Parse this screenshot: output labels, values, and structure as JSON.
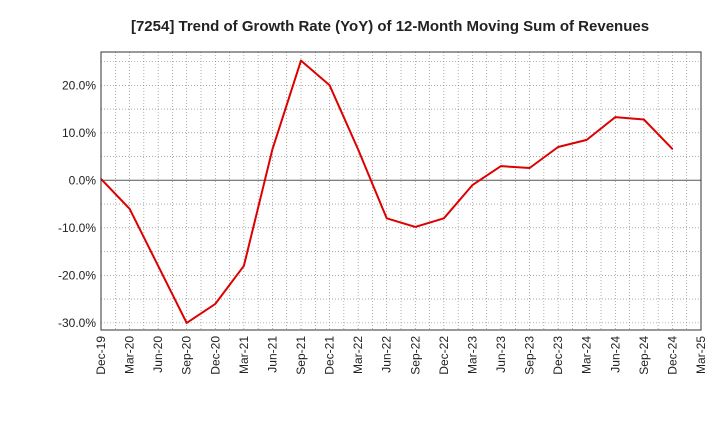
{
  "chart_data": {
    "type": "line",
    "title": "[7254]  Trend of Growth Rate (YoY) of 12-Month Moving Sum of Revenues",
    "xlabel": "",
    "ylabel": "",
    "x_ticks": [
      "Dec-19",
      "Mar-20",
      "Jun-20",
      "Sep-20",
      "Dec-20",
      "Mar-21",
      "Jun-21",
      "Sep-21",
      "Dec-21",
      "Mar-22",
      "Jun-22",
      "Sep-22",
      "Dec-22",
      "Mar-23",
      "Jun-23",
      "Sep-23",
      "Dec-23",
      "Mar-24",
      "Jun-24",
      "Sep-24",
      "Dec-24",
      "Mar-25"
    ],
    "y_ticks": [
      "20.0%",
      "10.0%",
      "0.0%",
      "-10.0%",
      "-20.0%",
      "-30.0%"
    ],
    "y_tick_values": [
      20,
      10,
      0,
      -10,
      -20,
      -30
    ],
    "ylim": [
      -31.5,
      27
    ],
    "grid": true,
    "line_color": "#dd0000",
    "series": [
      {
        "x": [
          "Dec-19",
          "Mar-20",
          "Jun-20",
          "Sep-20",
          "Dec-20",
          "Mar-21",
          "Jun-21",
          "Sep-21",
          "Dec-21",
          "Mar-22",
          "Jun-22",
          "Sep-22",
          "Dec-22",
          "Mar-23",
          "Jun-23",
          "Sep-23",
          "Dec-23",
          "Mar-24",
          "Jun-24",
          "Sep-24",
          "Dec-24"
        ],
        "values": [
          0.3,
          -6.0,
          -18.0,
          -30.0,
          -26.0,
          -18.0,
          6.5,
          25.2,
          20.0,
          6.5,
          -8.0,
          -9.8,
          -8.0,
          -1.0,
          3.0,
          2.6,
          7.0,
          8.5,
          13.3,
          12.8,
          6.6
        ]
      }
    ]
  }
}
